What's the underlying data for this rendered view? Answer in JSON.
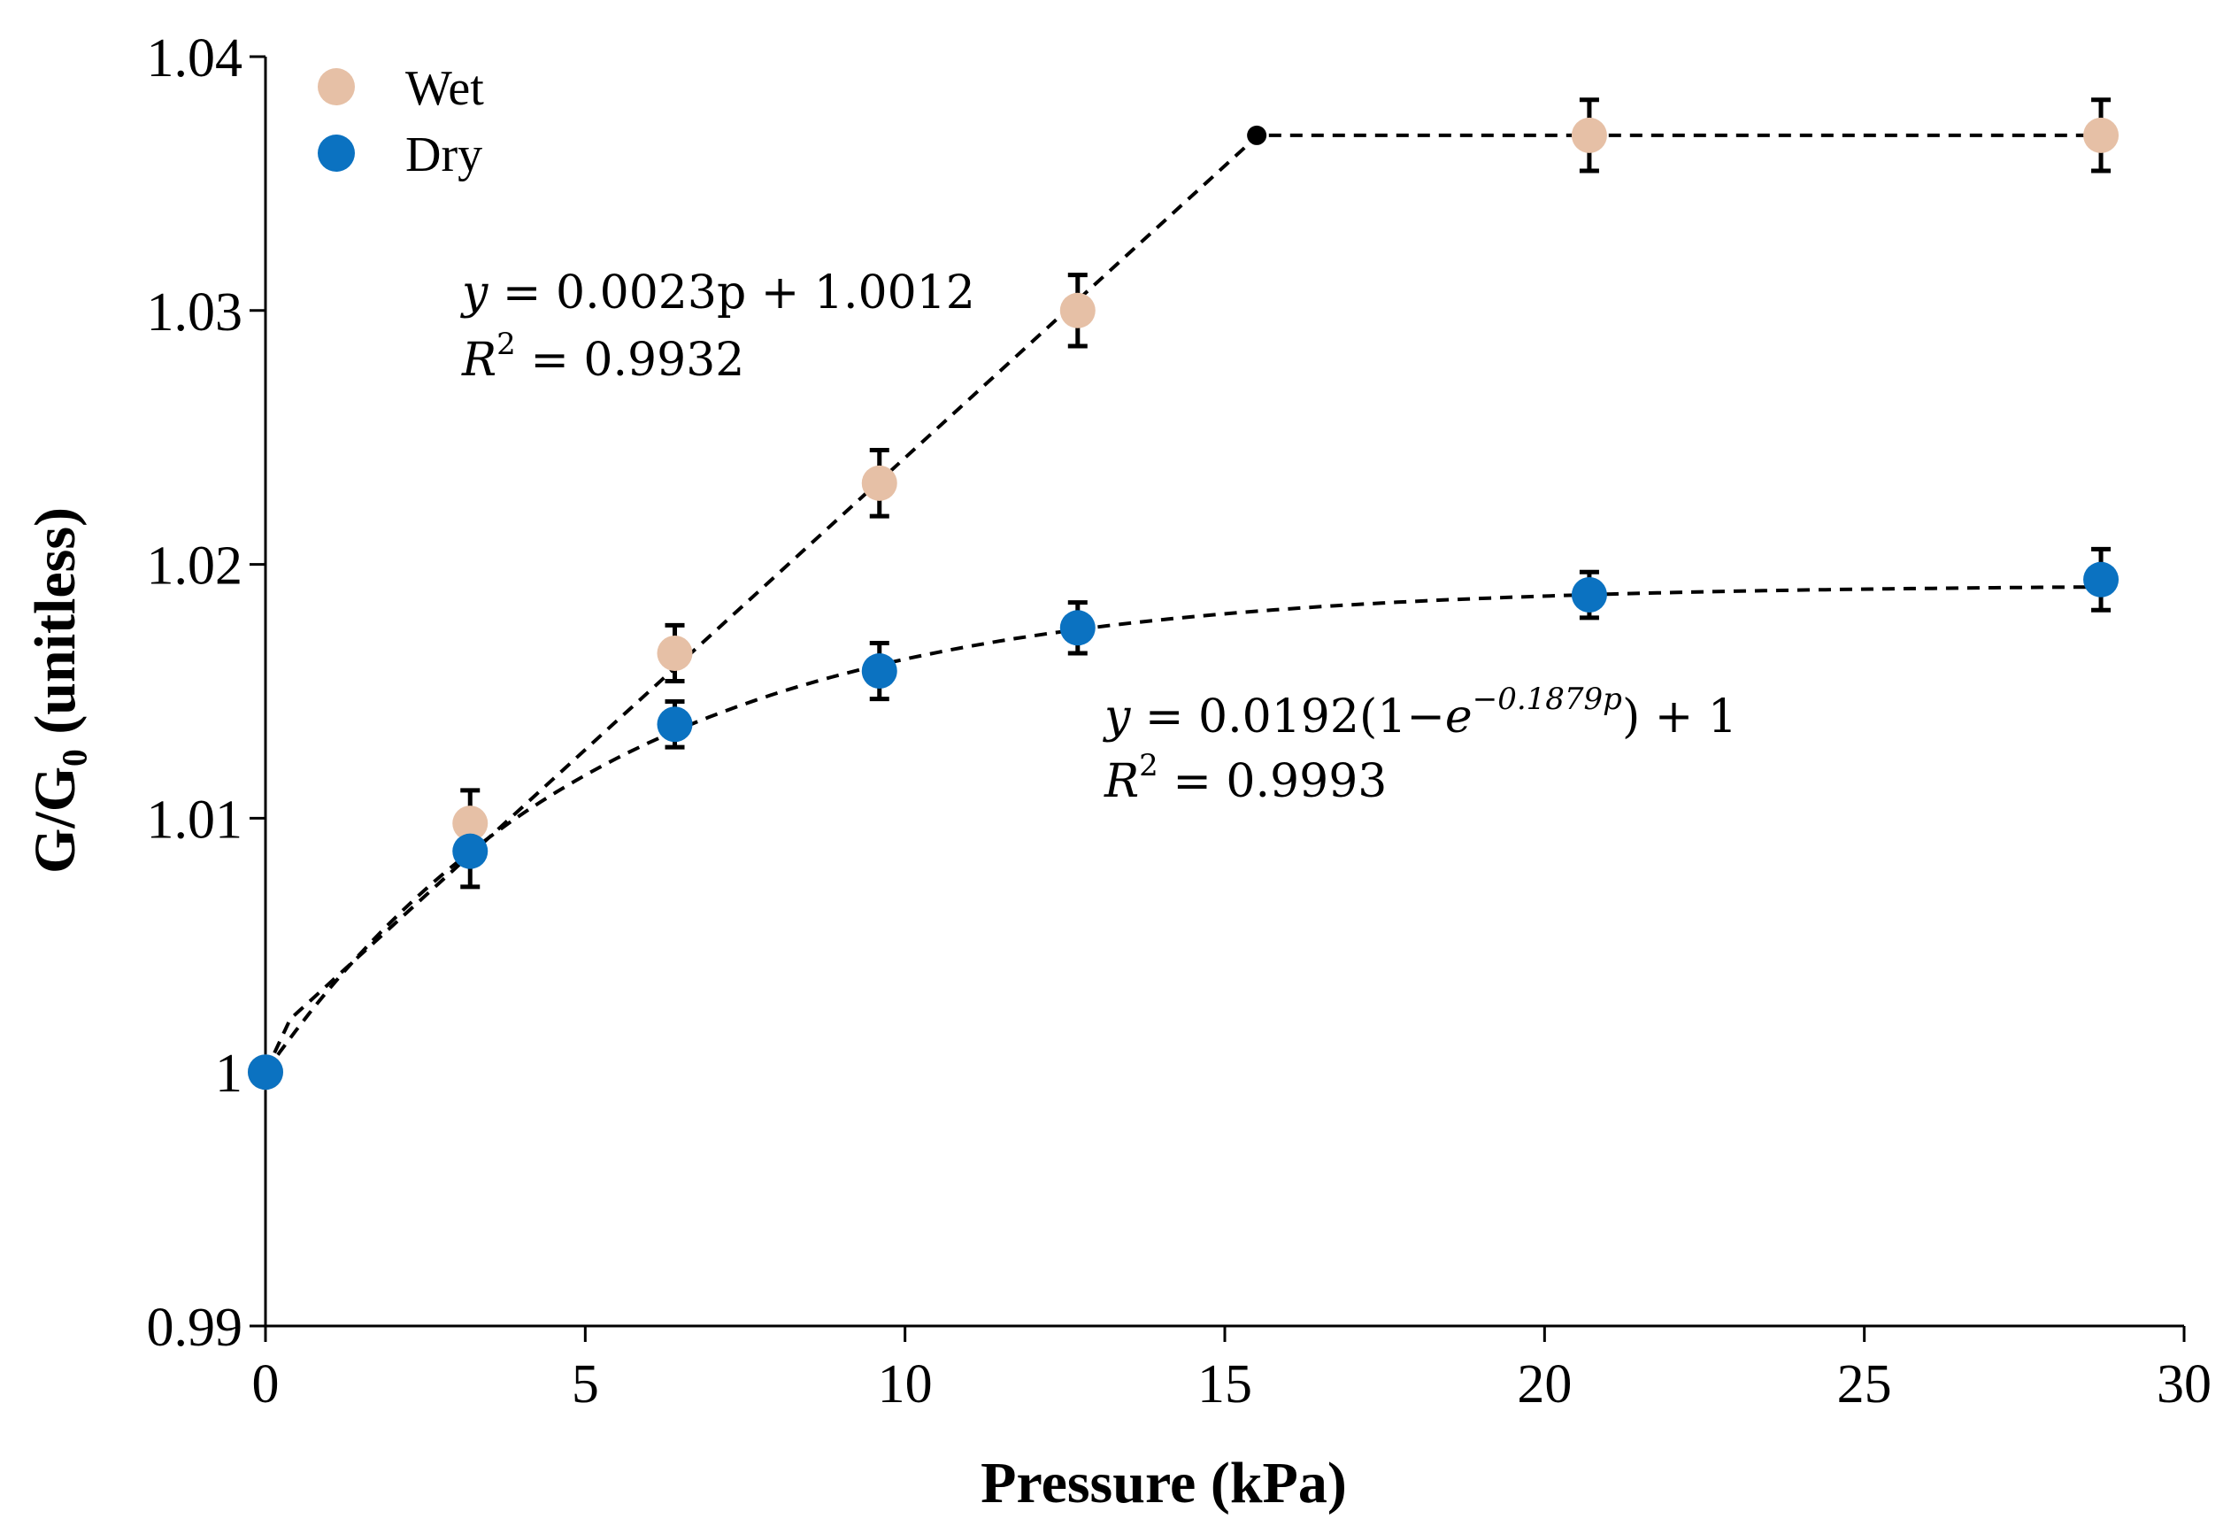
{
  "chart_data": {
    "type": "scatter",
    "title": "",
    "xlabel": "Pressure (kPa)",
    "ylabel": "G/G₀ (unitless)",
    "xlim": [
      0,
      30
    ],
    "ylim": [
      0.99,
      1.04
    ],
    "x_ticks": [
      0,
      5,
      10,
      15,
      20,
      25,
      30
    ],
    "x_tick_labels": [
      "0",
      "5",
      "10",
      "15",
      "20",
      "25",
      "30"
    ],
    "y_ticks": [
      0.99,
      1,
      1.01,
      1.02,
      1.03,
      1.04
    ],
    "y_tick_labels": [
      "0.99",
      "1",
      "1.01",
      "1.02",
      "1.03",
      "1.04"
    ],
    "grid": false,
    "legend_position": "top-left",
    "series": [
      {
        "name": "Wet",
        "color": "#E6C0A6",
        "x": [
          0,
          3.2,
          6.4,
          9.6,
          12.7,
          20.7,
          28.7
        ],
        "y": [
          1.0,
          1.0098,
          1.0165,
          1.0232,
          1.03,
          1.0369,
          1.0369
        ],
        "error": [
          0,
          0.0013,
          0.0011,
          0.0013,
          0.0014,
          0.0014,
          0.0014
        ]
      },
      {
        "name": "Dry",
        "color": "#0B72C1",
        "x": [
          0,
          3.2,
          6.4,
          9.6,
          12.7,
          20.7,
          28.7
        ],
        "y": [
          1.0,
          1.0087,
          1.0137,
          1.0158,
          1.0175,
          1.0188,
          1.0194
        ],
        "error": [
          0,
          0.0014,
          0.0009,
          0.0011,
          0.001,
          0.0009,
          0.0012
        ]
      }
    ],
    "fits": [
      {
        "name": "Wet fit",
        "kind": "piecewise-linear",
        "slope": 0.0023,
        "intercept": 1.0012,
        "plateau": 1.0369,
        "knee_x": 15.5
      },
      {
        "name": "Dry fit",
        "kind": "exponential-saturation",
        "a": 0.0192,
        "k": 0.1879,
        "c": 1
      }
    ],
    "annotations": [
      {
        "name": "wet-equation",
        "eq_y": "y",
        "eq_rhs": " = 0.0023p + 1.0012",
        "r2_R": "R",
        "r2_sup": "2",
        "r2_rhs": " = 0.9932"
      },
      {
        "name": "dry-equation",
        "eq_y": "y",
        "eq_mid": " = 0.0192(1−",
        "eq_e": "e",
        "eq_sup": "−0.1879p",
        "eq_end": ") + 1",
        "r2_R": "R",
        "r2_sup": "2",
        "r2_rhs": " = 0.9993"
      }
    ]
  }
}
